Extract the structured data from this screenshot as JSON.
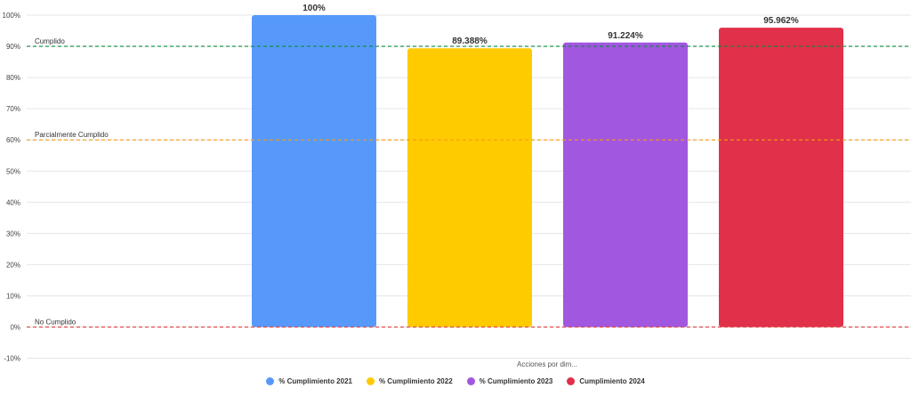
{
  "chart_data": {
    "type": "bar",
    "categories": [
      "Acciones por dim..."
    ],
    "xlabel": "Acciones por dim...",
    "ylabel": "",
    "ylim": [
      -10,
      100
    ],
    "yticks": [
      "-10%",
      "0%",
      "10%",
      "20%",
      "30%",
      "40%",
      "50%",
      "60%",
      "70%",
      "80%",
      "90%",
      "100%"
    ],
    "ytick_values": [
      -10,
      0,
      10,
      20,
      30,
      40,
      50,
      60,
      70,
      80,
      90,
      100
    ],
    "grid": true,
    "legend_position": "bottom",
    "series": [
      {
        "name": "% Cumplimiento 2021",
        "values": [
          100
        ],
        "label": "100%",
        "color": "#5799fb"
      },
      {
        "name": "% Cumplimiento 2022",
        "values": [
          89.388
        ],
        "label": "89.388%",
        "color": "#fecb00"
      },
      {
        "name": "% Cumplimiento 2023",
        "values": [
          91.224
        ],
        "label": "91.224%",
        "color": "#a257e0"
      },
      {
        "name": "Cumplimiento 2024",
        "values": [
          95.962
        ],
        "label": "95.962%",
        "color": "#e0304a"
      }
    ],
    "reference_lines": [
      {
        "label": "Cumplido",
        "value": 90,
        "color": "#0a8a3a"
      },
      {
        "label": "Parcialmente Cumplido",
        "value": 60,
        "color": "#f39c12"
      },
      {
        "label": "No Cumplido",
        "value": 0,
        "color": "#e04a4a"
      }
    ]
  }
}
